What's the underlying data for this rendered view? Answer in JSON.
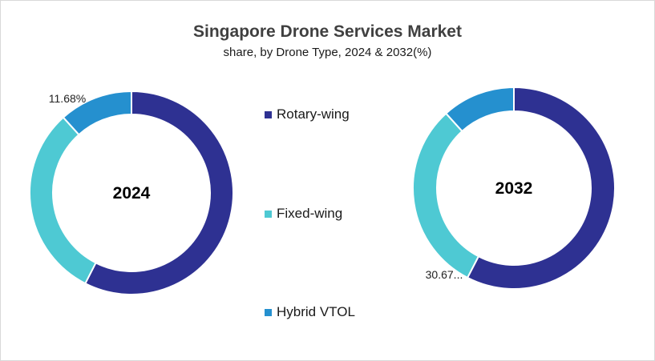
{
  "chart_data": {
    "type": "donut",
    "title": "Singapore Drone Services Market",
    "subtitle": "share, by Drone Type, 2024 & 2032(%)",
    "categories": [
      "Rotary-wing",
      "Fixed-wing",
      "Hybrid VTOL"
    ],
    "colors": [
      "#2e3192",
      "#4ec9d3",
      "#2590cf"
    ],
    "legend_position": "center",
    "charts": [
      {
        "center_label": "2024",
        "values": [
          57.5,
          30.82,
          11.68
        ],
        "data_labels": [
          "",
          "",
          "11.68%"
        ]
      },
      {
        "center_label": "2032",
        "values": [
          57.6,
          30.67,
          11.73
        ],
        "data_labels": [
          "",
          "30.67...",
          ""
        ]
      }
    ]
  }
}
